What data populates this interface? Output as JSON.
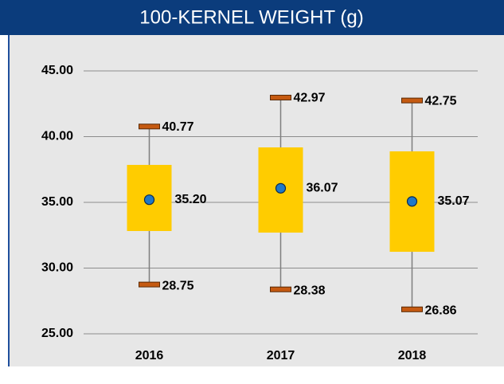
{
  "chart_data": {
    "type": "box",
    "title": "100-KERNEL WEIGHT (g)",
    "categories": [
      "2016",
      "2017",
      "2018"
    ],
    "max": [
      40.77,
      42.97,
      42.75
    ],
    "max_labels": [
      "40.77",
      "42.97",
      "42.75"
    ],
    "q3": [
      37.85,
      39.18,
      38.88
    ],
    "mean": [
      35.2,
      36.07,
      35.07
    ],
    "mean_labels": [
      "35.20",
      "36.07",
      "35.07"
    ],
    "q1": [
      32.82,
      32.7,
      31.24
    ],
    "min": [
      28.75,
      28.38,
      26.86
    ],
    "min_labels": [
      "28.75",
      "28.38",
      "26.86"
    ],
    "box_color": "#ffcc00",
    "mean_color": "#1f78c8",
    "cap_color": "#c55a11",
    "ylim": [
      25,
      45
    ],
    "yticks": [
      {
        "value": 25,
        "label": "25.00"
      },
      {
        "value": 30,
        "label": "30.00"
      },
      {
        "value": 35,
        "label": "35.00"
      },
      {
        "value": 40,
        "label": "40.00"
      },
      {
        "value": 45,
        "label": "45.00"
      }
    ],
    "grid": true
  }
}
